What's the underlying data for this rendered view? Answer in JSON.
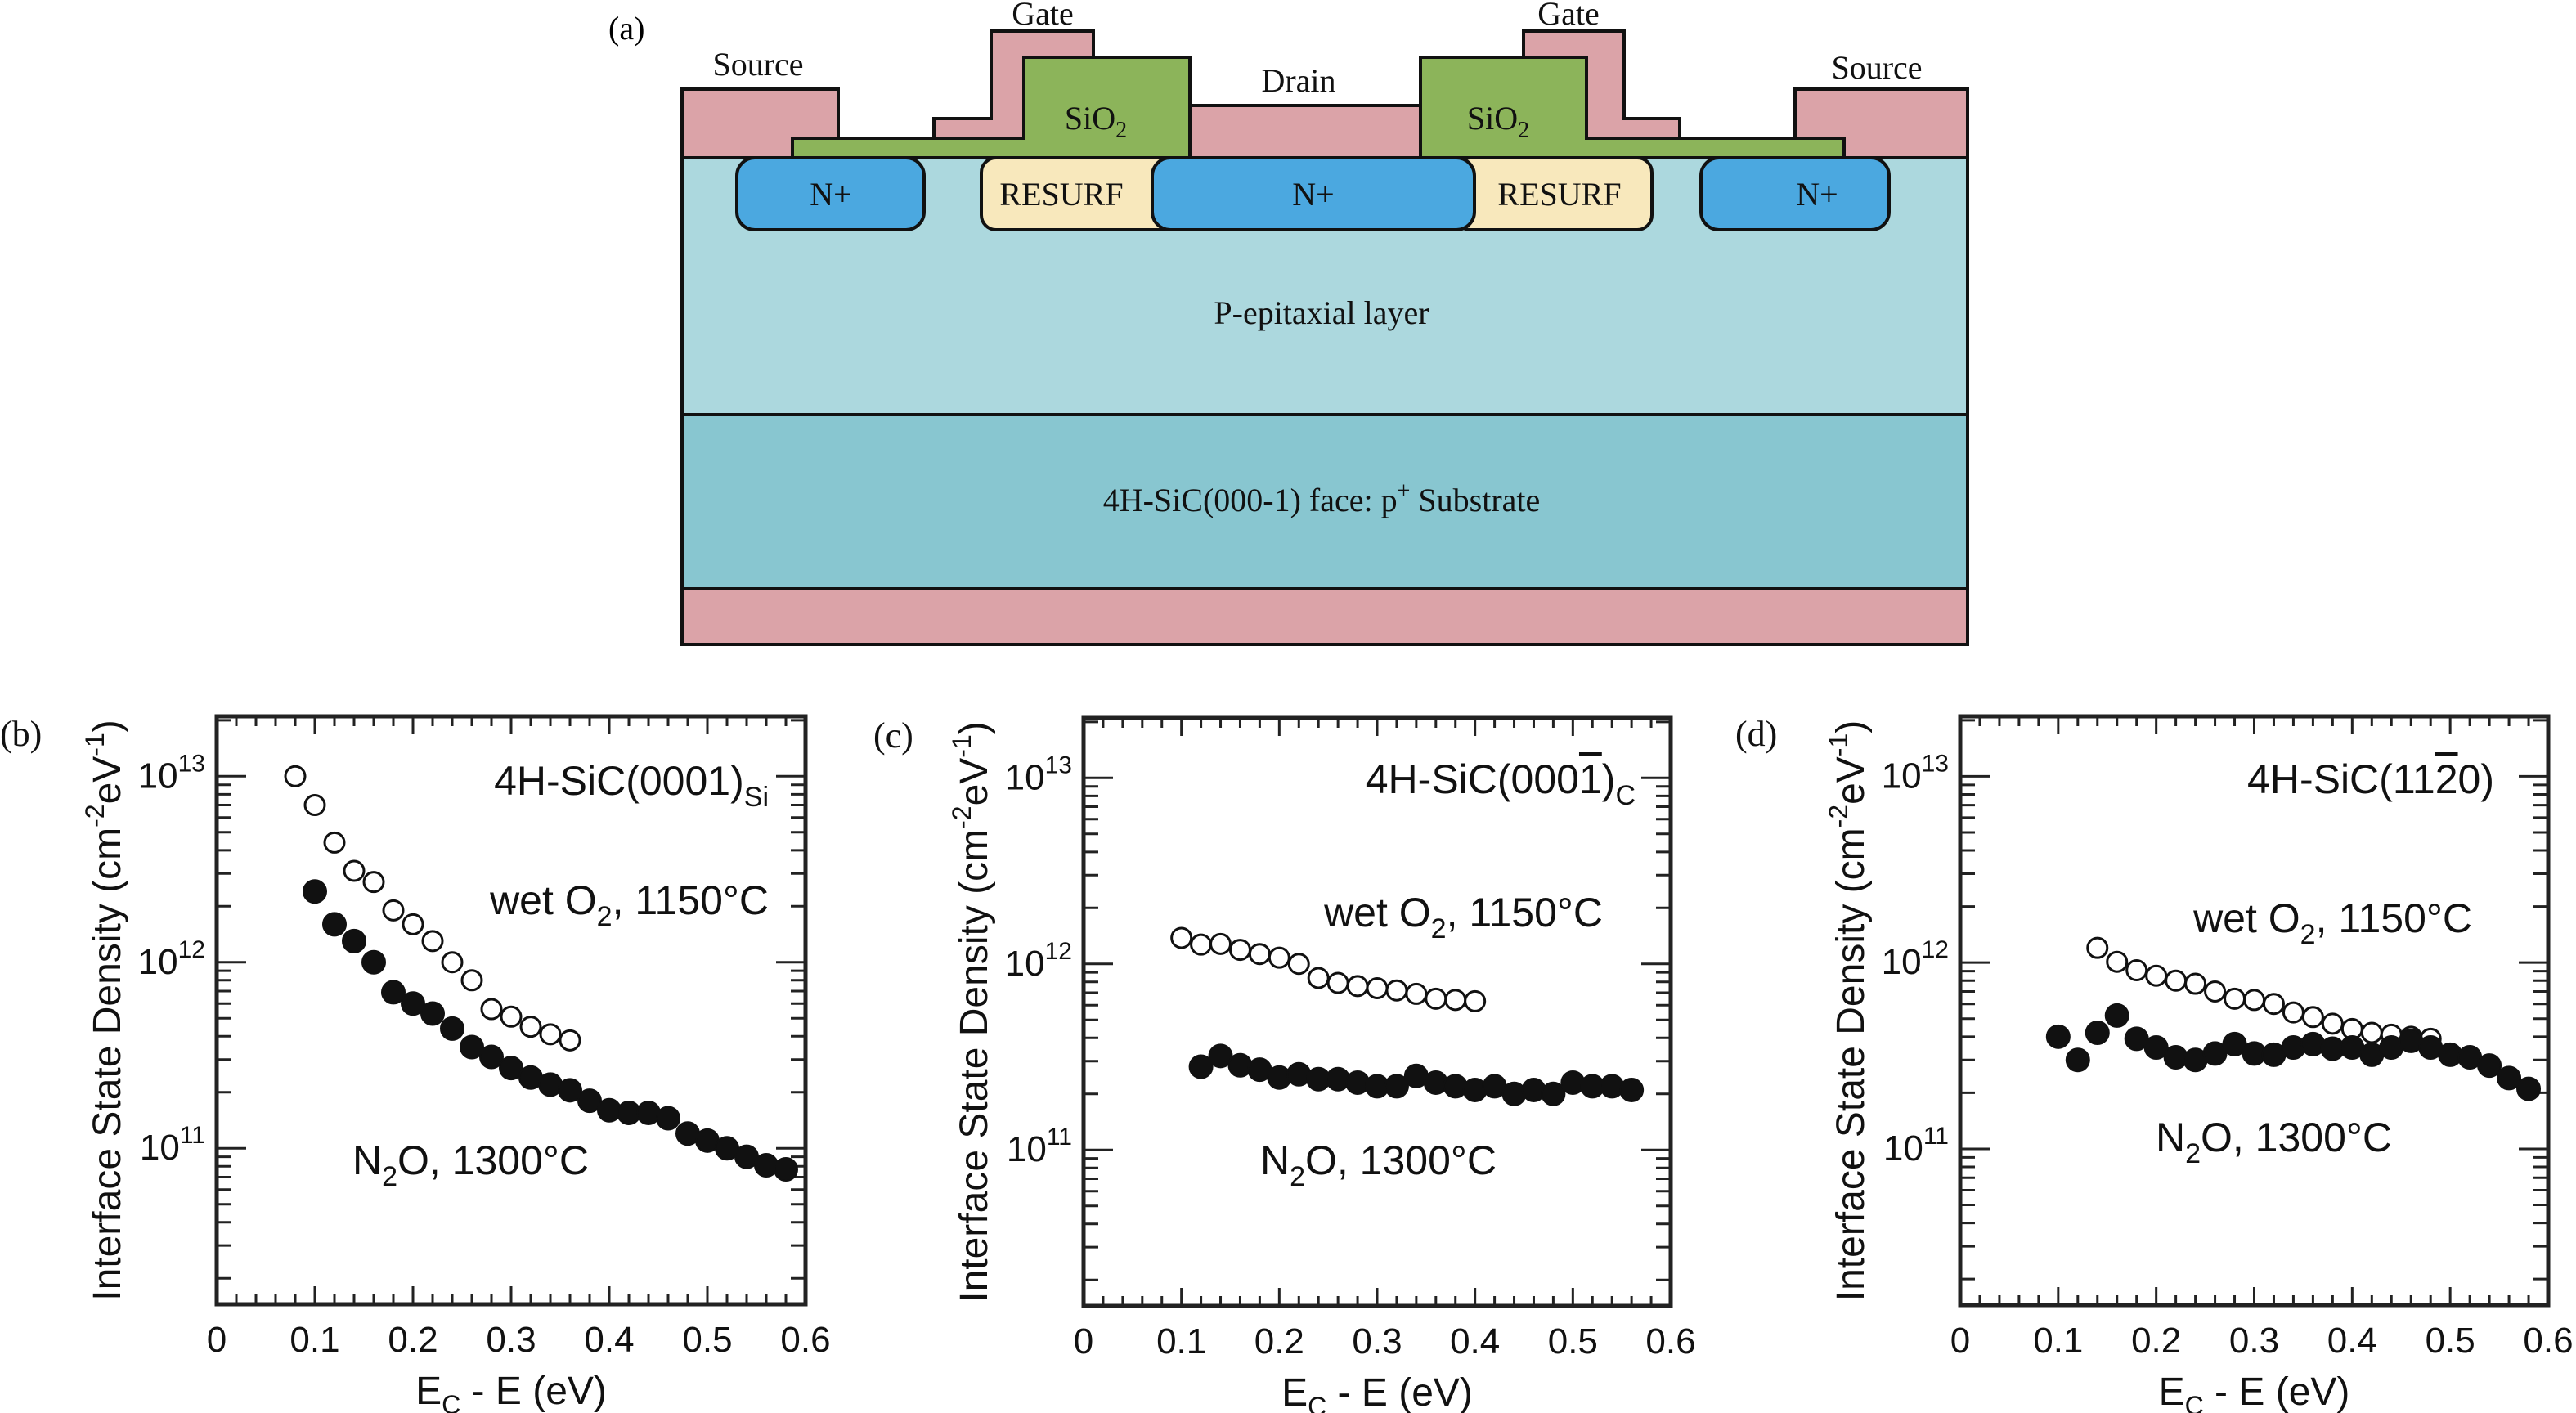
{
  "figure": {
    "panel_a": {
      "label": "(a)",
      "colors": {
        "metal": "#dba3a8",
        "oxide": "#8cb45a",
        "nplus": "#4ba8e0",
        "resurf": "#f8e8bc",
        "epi": "#acd8de",
        "substrate": "#88c6d0",
        "outline": "#111111"
      },
      "labels": {
        "source_left": "Source",
        "gate_left": "Gate",
        "drain": "Drain",
        "gate_right": "Gate",
        "source_right": "Source",
        "oxide_left": "SiO",
        "oxide_left_sub": "2",
        "oxide_right": "SiO",
        "oxide_right_sub": "2",
        "nplus_left": "N+",
        "resurf_left": "RESURF",
        "nplus_mid": "N+",
        "resurf_right": "RESURF",
        "nplus_right": "N+",
        "epi_layer": "P-epitaxial layer",
        "substrate_pre": "4H-SiC(000-1) face: p",
        "substrate_sup": "+",
        "substrate_post": " Substrate"
      }
    }
  },
  "chart_data": [
    {
      "panel": "(b)",
      "type": "scatter",
      "title": "4H-SiC(0001)",
      "title_sub": "Si",
      "xlabel": "E_C - E (eV)",
      "ylabel": "Interface State Density (cm^-2 eV^-1)",
      "xlim": [
        0,
        0.6
      ],
      "ylim": [
        14500000000.0,
        21000000000000.0
      ],
      "yscale": "log",
      "xticks": [
        "0",
        "0.1",
        "0.2",
        "0.3",
        "0.4",
        "0.5",
        "0.6"
      ],
      "yticks": [
        {
          "base": "10",
          "exp": "13"
        },
        {
          "base": "10",
          "exp": "12"
        },
        {
          "base": "10",
          "exp": "11"
        }
      ],
      "grid": false,
      "series": [
        {
          "name": "wet O2, 1150°C",
          "label_main": "wet O",
          "label_sub": "2",
          "label_tail": ", 1150°C",
          "marker": "open-circle",
          "x": [
            0.08,
            0.1,
            0.12,
            0.14,
            0.16,
            0.18,
            0.2,
            0.22,
            0.24,
            0.26,
            0.28,
            0.3,
            0.32,
            0.34,
            0.36
          ],
          "y": [
            10000000000000.0,
            7000000000000.0,
            4400000000000.0,
            3100000000000.0,
            2700000000000.0,
            1900000000000.0,
            1600000000000.0,
            1300000000000.0,
            1000000000000.0,
            800000000000.0,
            560000000000.0,
            510000000000.0,
            450000000000.0,
            410000000000.0,
            380000000000.0
          ]
        },
        {
          "name": "N2O, 1300°C",
          "label_main": "N",
          "label_sub": "2",
          "label_tail": "O, 1300°C",
          "marker": "filled-circle",
          "x": [
            0.1,
            0.12,
            0.14,
            0.16,
            0.18,
            0.2,
            0.22,
            0.24,
            0.26,
            0.28,
            0.3,
            0.32,
            0.34,
            0.36,
            0.38,
            0.4,
            0.42,
            0.44,
            0.46,
            0.48,
            0.5,
            0.52,
            0.54,
            0.56,
            0.58
          ],
          "y": [
            2400000000000.0,
            1600000000000.0,
            1300000000000.0,
            1000000000000.0,
            690000000000.0,
            600000000000.0,
            530000000000.0,
            440000000000.0,
            350000000000.0,
            310000000000.0,
            270000000000.0,
            240000000000.0,
            220000000000.0,
            205000000000.0,
            180000000000.0,
            160000000000.0,
            155000000000.0,
            155000000000.0,
            145000000000.0,
            120000000000.0,
            110000000000.0,
            100000000000.0,
            90000000000.0,
            81000000000.0,
            77000000000.0
          ]
        }
      ]
    },
    {
      "panel": "(c)",
      "type": "scatter",
      "title": "4H-SiC(000",
      "title_bar": "1",
      "title_close": ")",
      "title_sub": "C",
      "xlabel": "E_C - E (eV)",
      "ylabel": "Interface State Density (cm^-2 eV^-1)",
      "xlim": [
        0,
        0.6
      ],
      "ylim": [
        14500000000.0,
        21000000000000.0
      ],
      "yscale": "log",
      "xticks": [
        "0",
        "0.1",
        "0.2",
        "0.3",
        "0.4",
        "0.5",
        "0.6"
      ],
      "yticks": [
        {
          "base": "10",
          "exp": "13"
        },
        {
          "base": "10",
          "exp": "12"
        },
        {
          "base": "10",
          "exp": "11"
        }
      ],
      "grid": false,
      "series": [
        {
          "name": "wet O2, 1150°C",
          "label_main": "wet O",
          "label_sub": "2",
          "label_tail": ", 1150°C",
          "marker": "open-circle",
          "x": [
            0.1,
            0.12,
            0.14,
            0.16,
            0.18,
            0.2,
            0.22,
            0.24,
            0.26,
            0.28,
            0.3,
            0.32,
            0.34,
            0.36,
            0.38,
            0.4
          ],
          "y": [
            1380000000000.0,
            1270000000000.0,
            1280000000000.0,
            1190000000000.0,
            1130000000000.0,
            1080000000000.0,
            1000000000000.0,
            840000000000.0,
            790000000000.0,
            760000000000.0,
            740000000000.0,
            720000000000.0,
            690000000000.0,
            650000000000.0,
            640000000000.0,
            630000000000.0
          ]
        },
        {
          "name": "N2O, 1300°C",
          "label_main": "N",
          "label_sub": "2",
          "label_tail": "O, 1300°C",
          "marker": "filled-circle",
          "x": [
            0.12,
            0.14,
            0.16,
            0.18,
            0.2,
            0.22,
            0.24,
            0.26,
            0.28,
            0.3,
            0.32,
            0.34,
            0.36,
            0.38,
            0.4,
            0.42,
            0.44,
            0.46,
            0.48,
            0.5,
            0.52,
            0.54,
            0.56
          ],
          "y": [
            280000000000.0,
            320000000000.0,
            285000000000.0,
            270000000000.0,
            245000000000.0,
            255000000000.0,
            240000000000.0,
            240000000000.0,
            230000000000.0,
            220000000000.0,
            220000000000.0,
            250000000000.0,
            230000000000.0,
            220000000000.0,
            210000000000.0,
            220000000000.0,
            200000000000.0,
            210000000000.0,
            200000000000.0,
            230000000000.0,
            220000000000.0,
            220000000000.0,
            210000000000.0
          ]
        }
      ]
    },
    {
      "panel": "(d)",
      "type": "scatter",
      "title": "4H-SiC(11",
      "title_bar": "2",
      "title_close": "0)",
      "title_sub": "",
      "xlabel": "E_C - E (eV)",
      "ylabel": "Interface State Density (cm^-2 eV^-1)",
      "xlim": [
        0,
        0.6
      ],
      "ylim": [
        14500000000.0,
        21000000000000.0
      ],
      "yscale": "log",
      "xticks": [
        "0",
        "0.1",
        "0.2",
        "0.3",
        "0.4",
        "0.5",
        "0.6"
      ],
      "yticks": [
        {
          "base": "10",
          "exp": "13"
        },
        {
          "base": "10",
          "exp": "12"
        },
        {
          "base": "10",
          "exp": "11"
        }
      ],
      "grid": false,
      "series": [
        {
          "name": "wet O2, 1150°C",
          "label_main": "wet O",
          "label_sub": "2",
          "label_tail": ", 1150°C",
          "marker": "open-circle",
          "x": [
            0.14,
            0.16,
            0.18,
            0.2,
            0.22,
            0.24,
            0.26,
            0.28,
            0.3,
            0.32,
            0.34,
            0.36,
            0.38,
            0.4,
            0.42,
            0.44,
            0.46,
            0.48
          ],
          "y": [
            1200000000000.0,
            1010000000000.0,
            910000000000.0,
            850000000000.0,
            800000000000.0,
            770000000000.0,
            700000000000.0,
            640000000000.0,
            630000000000.0,
            600000000000.0,
            540000000000.0,
            510000000000.0,
            470000000000.0,
            440000000000.0,
            420000000000.0,
            410000000000.0,
            400000000000.0,
            390000000000.0
          ]
        },
        {
          "name": "N2O, 1300°C",
          "label_main": "N",
          "label_sub": "2",
          "label_tail": "O, 1300°C",
          "marker": "filled-circle",
          "x": [
            0.1,
            0.12,
            0.14,
            0.16,
            0.18,
            0.2,
            0.22,
            0.24,
            0.26,
            0.28,
            0.3,
            0.32,
            0.34,
            0.36,
            0.38,
            0.4,
            0.42,
            0.44,
            0.46,
            0.48,
            0.5,
            0.52,
            0.54,
            0.56,
            0.58
          ],
          "y": [
            400000000000.0,
            300000000000.0,
            420000000000.0,
            520000000000.0,
            390000000000.0,
            350000000000.0,
            310000000000.0,
            300000000000.0,
            325000000000.0,
            365000000000.0,
            325000000000.0,
            320000000000.0,
            350000000000.0,
            365000000000.0,
            345000000000.0,
            350000000000.0,
            320000000000.0,
            350000000000.0,
            380000000000.0,
            350000000000.0,
            320000000000.0,
            310000000000.0,
            280000000000.0,
            240000000000.0,
            210000000000.0
          ]
        }
      ]
    }
  ]
}
